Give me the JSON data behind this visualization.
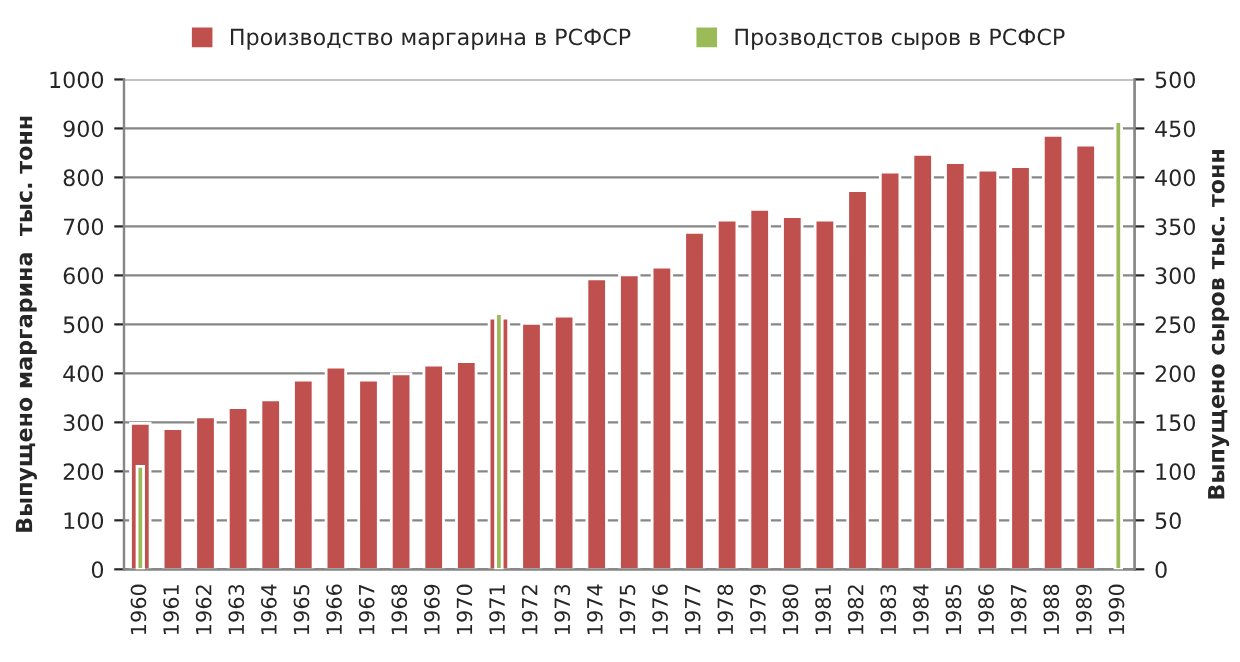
{
  "chart_data": {
    "type": "bar",
    "categories": [
      "1960",
      "1961",
      "1962",
      "1963",
      "1964",
      "1965",
      "1966",
      "1967",
      "1968",
      "1969",
      "1970",
      "1971",
      "1972",
      "1973",
      "1974",
      "1975",
      "1976",
      "1977",
      "1978",
      "1979",
      "1980",
      "1981",
      "1982",
      "1983",
      "1984",
      "1985",
      "1986",
      "1987",
      "1988",
      "1989",
      "1990"
    ],
    "series": [
      {
        "name": "Производство маргарина в РСФСР",
        "color": "#c0504d",
        "values": [
          298,
          287,
          311,
          330,
          346,
          386,
          413,
          386,
          399,
          417,
          424,
          513,
          502,
          517,
          593,
          601,
          617,
          688,
          713,
          735,
          720,
          713,
          773,
          811,
          847,
          830,
          815,
          822,
          886,
          866,
          null
        ]
      },
      {
        "name": "Прозводстов сыров в РСФСР",
        "color": "#9bbb59",
        "axis": "y2",
        "values": [
          105,
          null,
          null,
          null,
          null,
          null,
          null,
          null,
          null,
          null,
          null,
          261,
          null,
          null,
          null,
          null,
          null,
          null,
          null,
          null,
          null,
          null,
          null,
          null,
          null,
          null,
          null,
          null,
          null,
          null,
          457
        ]
      }
    ],
    "ylabel": "Выпущено маргарина  тыс. тонн",
    "y2label": "Выпущено сыров тыс. тонн",
    "ylim": [
      0,
      1000
    ],
    "yticks": [
      0,
      100,
      200,
      300,
      400,
      500,
      600,
      700,
      800,
      900,
      1000
    ],
    "y2lim": [
      0,
      500
    ],
    "y2ticks": [
      0,
      50,
      100,
      150,
      200,
      250,
      300,
      350,
      400,
      450,
      500
    ],
    "grid": "y",
    "legend": "top"
  }
}
